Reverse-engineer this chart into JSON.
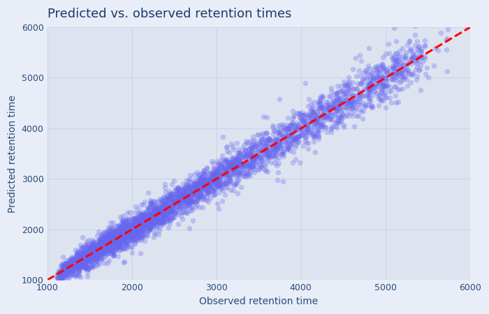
{
  "title": "Predicted vs. observed retention times",
  "xlabel": "Observed retention time",
  "ylabel": "Predicted retention time",
  "xlim": [
    1000,
    6000
  ],
  "ylim": [
    1000,
    6000
  ],
  "xticks": [
    1000,
    2000,
    3000,
    4000,
    5000,
    6000
  ],
  "yticks": [
    1000,
    2000,
    3000,
    4000,
    5000,
    6000
  ],
  "scatter_color": "#6666ee",
  "scatter_alpha": 0.3,
  "scatter_size": 30,
  "line_color": "red",
  "line_style": "--",
  "line_width": 2.2,
  "n_points": 3500,
  "seed": 42,
  "background_color": "#dde4f0",
  "figure_background": "#e8edf7",
  "title_color": "#1a3a6b",
  "axis_label_color": "#2a4a7b",
  "tick_color": "#2a4a7b",
  "grid_color": "#c8d4e8",
  "grid_alpha": 1.0,
  "title_fontsize": 13,
  "label_fontsize": 10
}
